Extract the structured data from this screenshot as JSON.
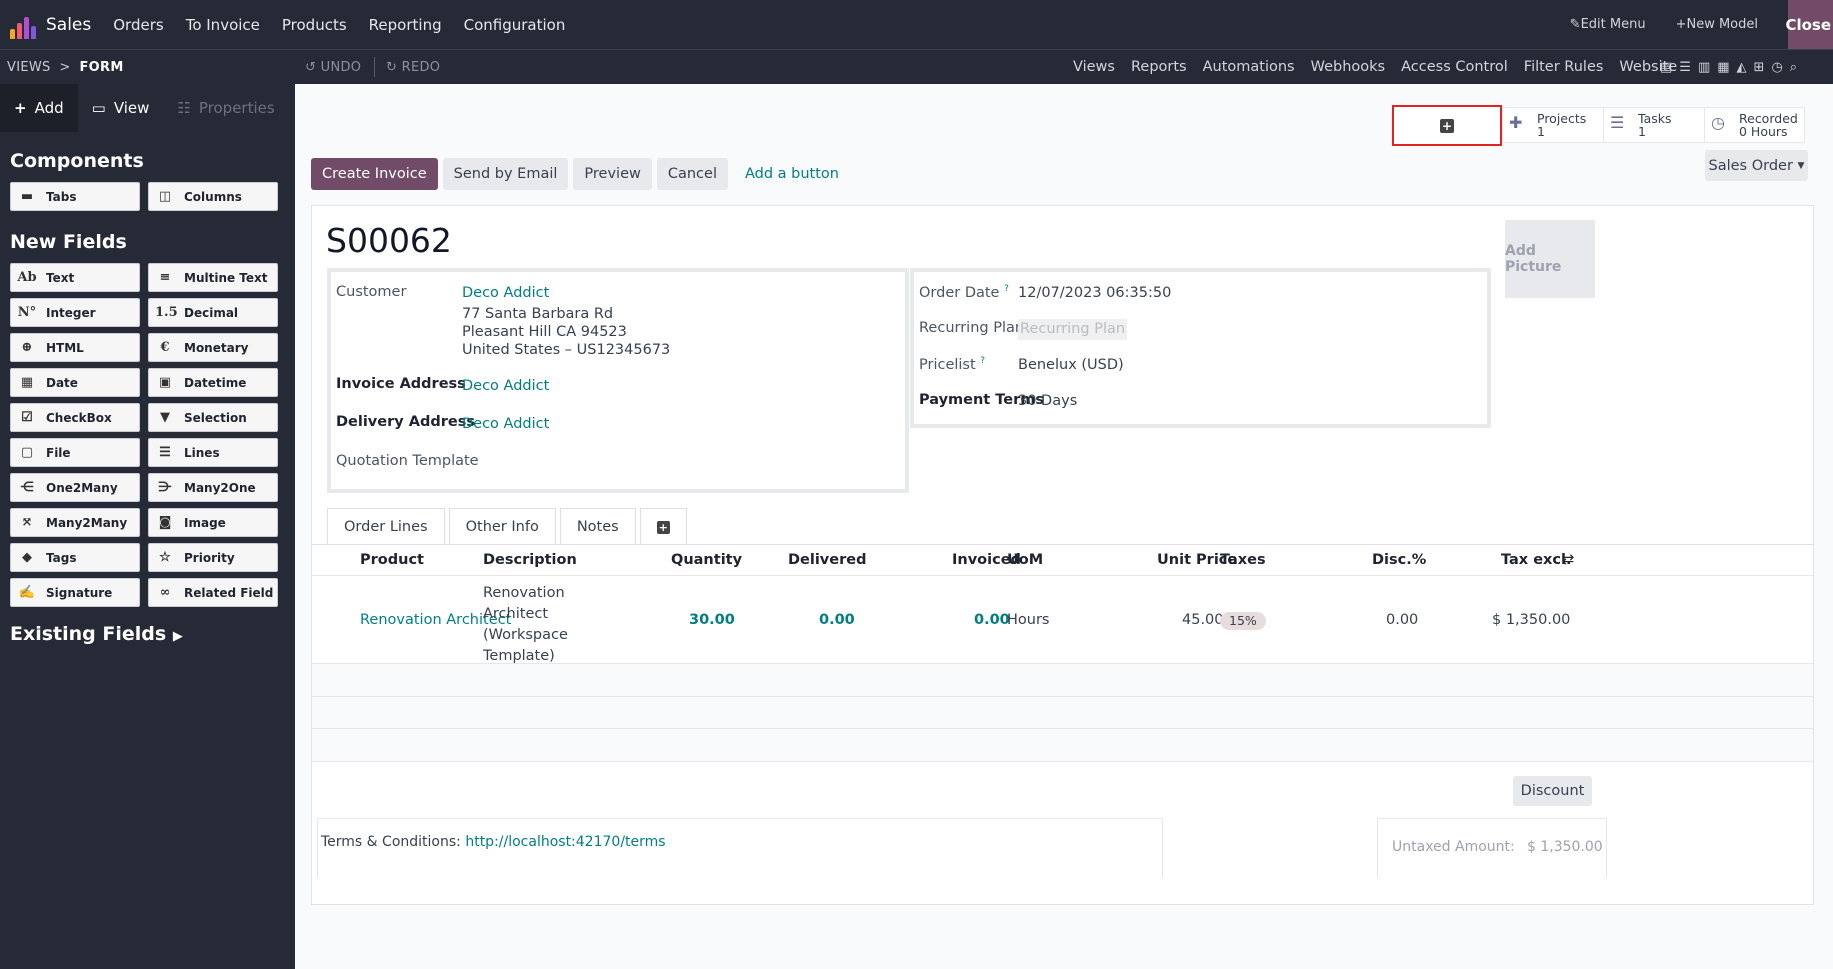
{
  "topbar": {
    "app_name": "Sales",
    "menu": [
      "Orders",
      "To Invoice",
      "Products",
      "Reporting",
      "Configuration"
    ],
    "edit_menu": "Edit Menu",
    "new_model": "New Model",
    "close": "Close",
    "logo_colors": [
      "#f5a623",
      "#e85d75",
      "#b04fd1",
      "#7b5ad9"
    ]
  },
  "subbar": {
    "crumb_root": "VIEWS",
    "crumb_sep": ">",
    "crumb_current": "FORM",
    "undo": "UNDO",
    "redo": "REDO",
    "links": [
      "Views",
      "Reports",
      "Automations",
      "Webhooks",
      "Access Control",
      "Filter Rules",
      "Website"
    ]
  },
  "sidebar": {
    "tabs": {
      "add": "Add",
      "view": "View",
      "properties": "Properties"
    },
    "components_heading": "Components",
    "components": [
      {
        "label": "Tabs",
        "icon": "tabs-icon"
      },
      {
        "label": "Columns",
        "icon": "columns-icon"
      }
    ],
    "new_fields_heading": "New Fields",
    "fields": [
      {
        "label": "Text",
        "icon": "Ab"
      },
      {
        "label": "Multine Text",
        "icon": "≡"
      },
      {
        "label": "Integer",
        "icon": "N°"
      },
      {
        "label": "Decimal",
        "icon": "1.5"
      },
      {
        "label": "HTML",
        "icon": "⊕"
      },
      {
        "label": "Monetary",
        "icon": "€"
      },
      {
        "label": "Date",
        "icon": "▦"
      },
      {
        "label": "Datetime",
        "icon": "▣"
      },
      {
        "label": "CheckBox",
        "icon": "☑"
      },
      {
        "label": "Selection",
        "icon": "▼"
      },
      {
        "label": "File",
        "icon": "▢"
      },
      {
        "label": "Lines",
        "icon": "☰"
      },
      {
        "label": "One2Many",
        "icon": "⋲"
      },
      {
        "label": "Many2One",
        "icon": "⋺"
      },
      {
        "label": "Many2Many",
        "icon": "⤧"
      },
      {
        "label": "Image",
        "icon": "◙"
      },
      {
        "label": "Tags",
        "icon": "◆"
      },
      {
        "label": "Priority",
        "icon": "☆"
      },
      {
        "label": "Signature",
        "icon": "✍"
      },
      {
        "label": "Related Field",
        "icon": "∞"
      }
    ],
    "existing_heading": "Existing Fields"
  },
  "stats": [
    {
      "label": "Projects",
      "value": "1"
    },
    {
      "label": "Tasks",
      "value": "1"
    },
    {
      "label": "Recorded",
      "value": "0 Hours"
    }
  ],
  "actions": {
    "create_invoice": "Create Invoice",
    "send_email": "Send by Email",
    "preview": "Preview",
    "cancel": "Cancel",
    "add_button": "Add a button",
    "sales_order": "Sales Order"
  },
  "form": {
    "title": "S00062",
    "add_picture": "Add Picture",
    "customer_label": "Customer",
    "customer_name": "Deco Addict",
    "customer_addr1": "77 Santa Barbara Rd",
    "customer_addr2": "Pleasant Hill CA 94523",
    "customer_addr3": "United States – US12345673",
    "invoice_label": "Invoice Address",
    "invoice_value": "Deco Addict",
    "delivery_label": "Delivery Address",
    "delivery_value": "Deco Addict",
    "quotation_label": "Quotation Template",
    "order_date_label": "Order Date",
    "order_date_value": "12/07/2023 06:35:50",
    "recurring_label": "Recurring Plan",
    "recurring_placeholder": "Recurring Plan",
    "pricelist_label": "Pricelist",
    "pricelist_value": "Benelux (USD)",
    "payment_label": "Payment Terms",
    "payment_value": "30 Days",
    "help_mark": "?"
  },
  "tabs": [
    "Order Lines",
    "Other Info",
    "Notes"
  ],
  "table": {
    "headers": [
      "Product",
      "Description",
      "Quantity",
      "Delivered",
      "Invoiced",
      "UoM",
      "Unit Price",
      "Taxes",
      "Disc.%",
      "Tax excl."
    ],
    "row": {
      "product": "Renovation Architect",
      "description": [
        "Renovation",
        "Architect",
        "(Workspace",
        "Template)"
      ],
      "quantity": "30.00",
      "delivered": "0.00",
      "invoiced": "0.00",
      "uom": "Hours",
      "unit_price": "45.00",
      "taxes": "15%",
      "discount": "0.00",
      "tax_excl": "$ 1,350.00"
    }
  },
  "footer": {
    "discount_btn": "Discount",
    "terms_label": "Terms & Conditions:",
    "terms_link": "http://localhost:42170/terms",
    "untaxed_label": "Untaxed Amount:",
    "untaxed_value": "$ 1,350.00"
  }
}
